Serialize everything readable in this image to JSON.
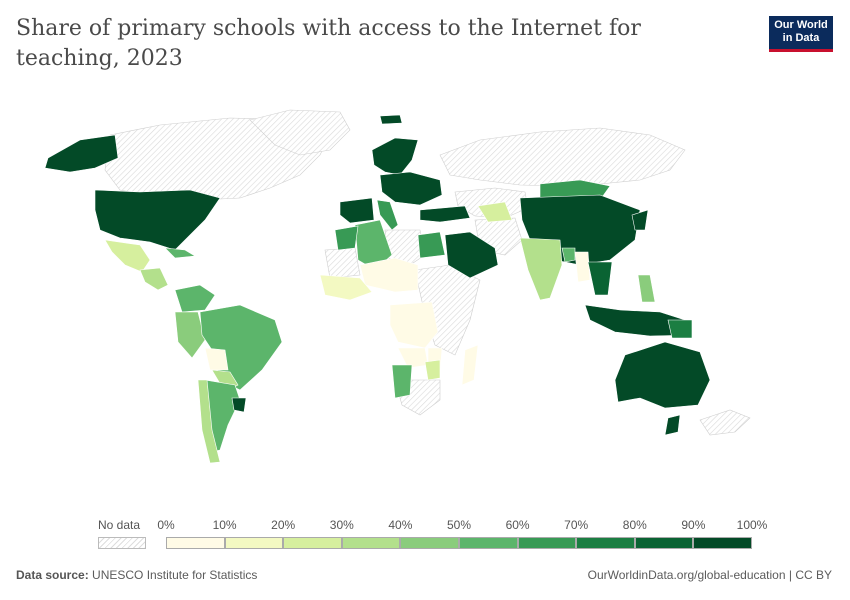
{
  "title": "Share of primary schools with access to the Internet for teaching, 2023",
  "logo": {
    "line1": "Our World",
    "line2": "in Data"
  },
  "legend": {
    "no_data_label": "No data",
    "ticks": [
      "0%",
      "10%",
      "20%",
      "30%",
      "40%",
      "50%",
      "60%",
      "70%",
      "80%",
      "90%",
      "100%"
    ],
    "colors": [
      "#fffbe6",
      "#f3f9c2",
      "#d6ef9e",
      "#b3e08c",
      "#8acc7c",
      "#5cb56b",
      "#389a55",
      "#1b7e42",
      "#0a6333",
      "#034a27"
    ]
  },
  "footer": {
    "source_label": "Data source:",
    "source_value": "UNESCO Institute for Statistics",
    "url": "OurWorldinData.org/global-education | CC BY"
  },
  "map_data": {
    "variable": "Share of primary schools with access to the Internet for teaching",
    "year": 2023,
    "regions": [
      {
        "name": "Alaska",
        "bin": 9
      },
      {
        "name": "United States",
        "bin": 9
      },
      {
        "name": "Mexico",
        "bin": 2
      },
      {
        "name": "Central America",
        "bin": 3
      },
      {
        "name": "Cuba",
        "bin": 5
      },
      {
        "name": "Colombia / Venezuela",
        "bin": 5
      },
      {
        "name": "Peru",
        "bin": 4
      },
      {
        "name": "Brazil",
        "bin": 5
      },
      {
        "name": "Bolivia",
        "bin": 0
      },
      {
        "name": "Paraguay",
        "bin": 3
      },
      {
        "name": "Argentina",
        "bin": 5
      },
      {
        "name": "Uruguay",
        "bin": 9
      },
      {
        "name": "Chile",
        "bin": 3
      },
      {
        "name": "Iceland",
        "bin": 9
      },
      {
        "name": "Scandinavia",
        "bin": 9
      },
      {
        "name": "Central Europe",
        "bin": 9
      },
      {
        "name": "Iberia",
        "bin": 9
      },
      {
        "name": "Italy",
        "bin": 6
      },
      {
        "name": "Turkey",
        "bin": 9
      },
      {
        "name": "Algeria",
        "bin": 5
      },
      {
        "name": "Morocco",
        "bin": 6
      },
      {
        "name": "Egypt",
        "bin": 6
      },
      {
        "name": "Arabian Peninsula",
        "bin": 9
      },
      {
        "name": "Sahel",
        "bin": 0
      },
      {
        "name": "West Africa",
        "bin": 1
      },
      {
        "name": "Central Africa",
        "bin": 0
      },
      {
        "name": "Zambia",
        "bin": 0
      },
      {
        "name": "Mozambique",
        "bin": 0
      },
      {
        "name": "Malawi",
        "bin": 2
      },
      {
        "name": "Namibia",
        "bin": 5
      },
      {
        "name": "Madagascar",
        "bin": 0
      },
      {
        "name": "Turkmenistan",
        "bin": 2
      },
      {
        "name": "Mongolia",
        "bin": 6
      },
      {
        "name": "China",
        "bin": 9
      },
      {
        "name": "India",
        "bin": 3
      },
      {
        "name": "Bangladesh",
        "bin": 5
      },
      {
        "name": "Myanmar",
        "bin": 0
      },
      {
        "name": "Southeast Asia",
        "bin": 8
      },
      {
        "name": "Philippines",
        "bin": 4
      },
      {
        "name": "Indonesia",
        "bin": 9
      },
      {
        "name": "Papua New Guinea",
        "bin": 7
      },
      {
        "name": "Japan",
        "bin": 9
      },
      {
        "name": "Australia",
        "bin": 9
      },
      {
        "name": "New Zealand",
        "bin": 9
      }
    ]
  }
}
